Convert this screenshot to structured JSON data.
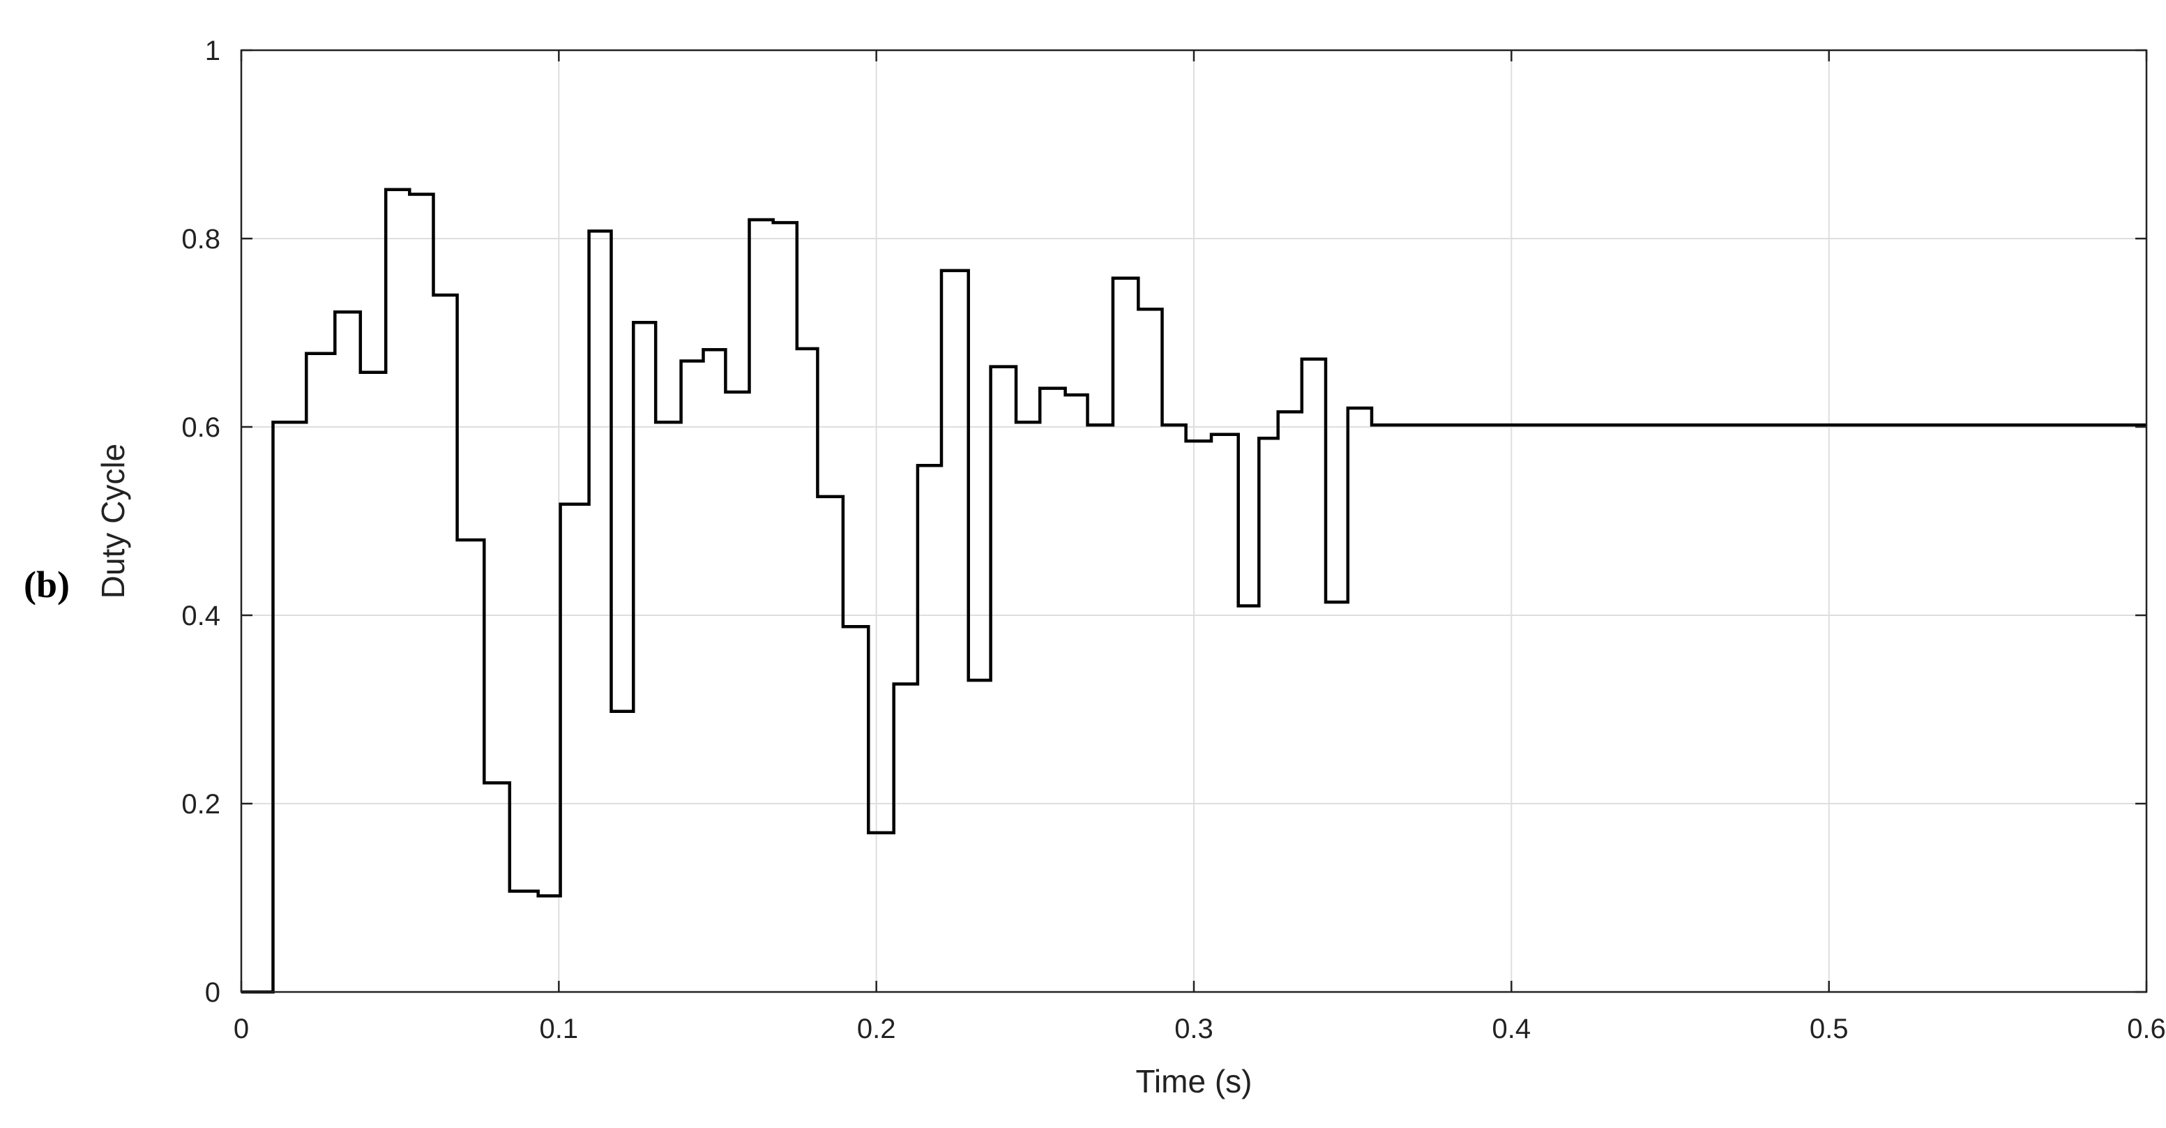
{
  "panel_label": "(b)",
  "chart_data": {
    "type": "line",
    "title": "",
    "xlabel": "Time (s)",
    "ylabel": "Duty Cycle",
    "xlim": [
      0,
      0.6
    ],
    "ylim": [
      0,
      1
    ],
    "xticks": [
      0,
      0.1,
      0.2,
      0.3,
      0.4,
      0.5,
      0.6
    ],
    "xtick_labels": [
      "0",
      "0.1",
      "0.2",
      "0.3",
      "0.4",
      "0.5",
      "0.6"
    ],
    "yticks": [
      0,
      0.2,
      0.4,
      0.6,
      0.8,
      1
    ],
    "ytick_labels": [
      "0",
      "0.2",
      "0.4",
      "0.6",
      "0.8",
      "1"
    ],
    "grid": true,
    "legend": "none",
    "line_style": "step",
    "line_color": "#000000",
    "series": [
      {
        "x": [
          0,
          0.01,
          0.0205,
          0.0295,
          0.0375,
          0.0455,
          0.053,
          0.0605,
          0.068,
          0.0765,
          0.0845,
          0.0935,
          0.1005,
          0.1095,
          0.1165,
          0.1235,
          0.1305,
          0.1385,
          0.1455,
          0.1525,
          0.16,
          0.1675,
          0.175,
          0.1815,
          0.1895,
          0.1975,
          0.2055,
          0.213,
          0.2205,
          0.229,
          0.236,
          0.244,
          0.2515,
          0.2595,
          0.2665,
          0.2745,
          0.2825,
          0.29,
          0.2975,
          0.3055,
          0.314,
          0.3205,
          0.3265,
          0.334,
          0.3415,
          0.3485,
          0.356,
          0.364,
          0.3715,
          0.6
        ],
        "y": [
          0,
          0.605,
          0.678,
          0.722,
          0.658,
          0.852,
          0.847,
          0.74,
          0.48,
          0.222,
          0.107,
          0.102,
          0.518,
          0.808,
          0.298,
          0.711,
          0.605,
          0.67,
          0.682,
          0.637,
          0.82,
          0.817,
          0.683,
          0.526,
          0.388,
          0.169,
          0.327,
          0.559,
          0.766,
          0.331,
          0.664,
          0.605,
          0.641,
          0.634,
          0.602,
          0.758,
          0.725,
          0.602,
          0.585,
          0.592,
          0.41,
          0.588,
          0.616,
          0.672,
          0.414,
          0.62,
          0.602,
          0.602,
          0.602,
          0.602
        ]
      }
    ]
  }
}
